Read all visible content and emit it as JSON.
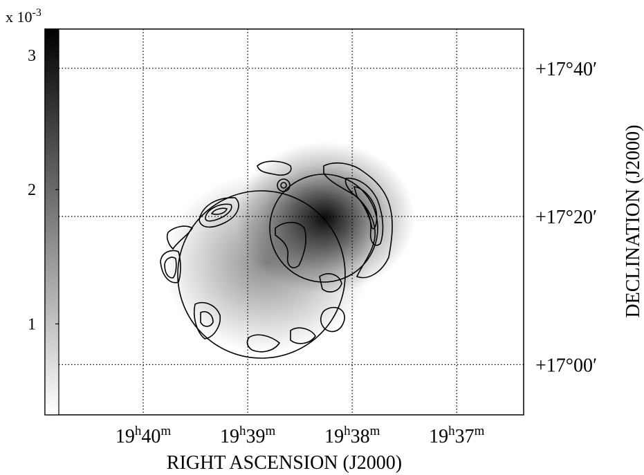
{
  "chart_data": {
    "type": "image",
    "xlabel": "RIGHT ASCENSION (J2000)",
    "ylabel": "DECLINATION (J2000)",
    "xlim": [
      40.94,
      36.36
    ],
    "xticks": [
      {
        "value": 40,
        "label": "19h40m"
      },
      {
        "value": 39,
        "label": "19h39m"
      },
      {
        "value": 38,
        "label": "19h38m"
      },
      {
        "value": 37,
        "label": "19h37m"
      }
    ],
    "ylim": [
      16.887,
      17.755
    ],
    "yticks": [
      {
        "value": 17.66667,
        "label": "+17°40′"
      },
      {
        "value": 17.33333,
        "label": "+17°20′"
      },
      {
        "value": 17.0,
        "label": "+17°00′"
      }
    ],
    "grid": true,
    "colorbar": {
      "label_base": "x 10",
      "label_exponent": "-3",
      "lim": [
        0.323,
        3.195
      ],
      "ticks": [
        1,
        2,
        3
      ]
    }
  }
}
